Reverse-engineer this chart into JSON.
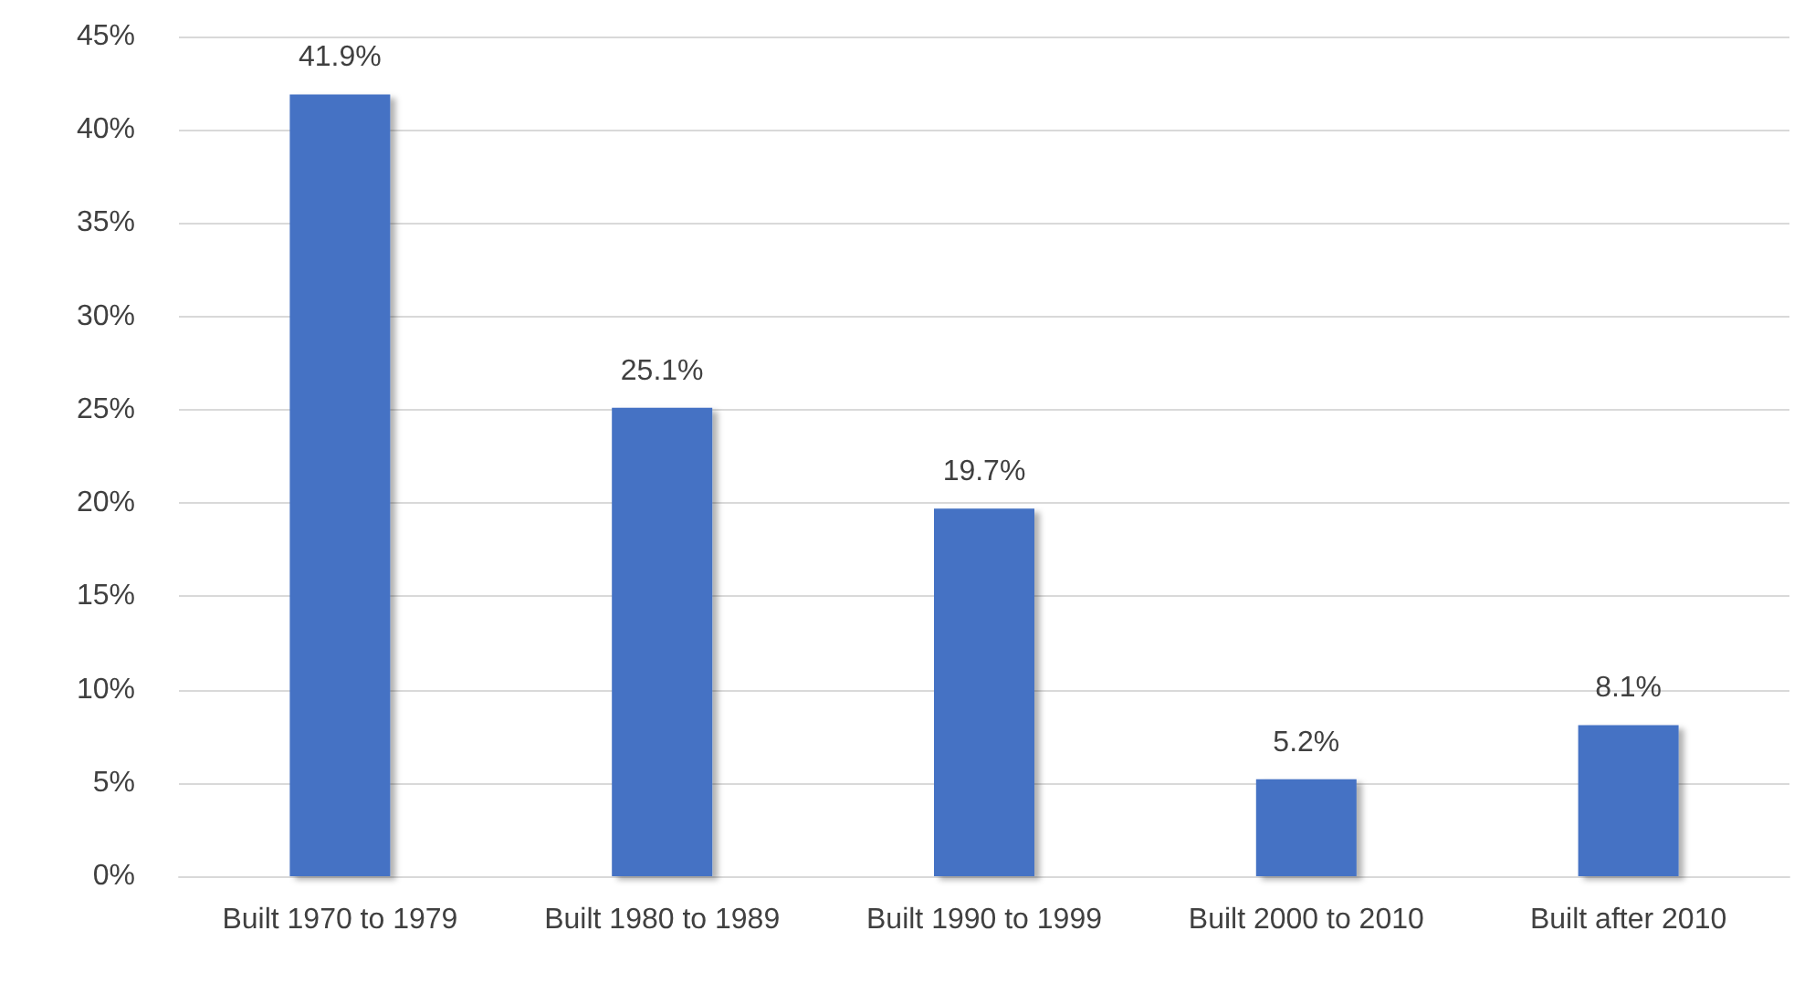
{
  "chart_data": {
    "type": "bar",
    "categories": [
      "Built 1970 to 1979",
      "Built 1980 to 1989",
      "Built 1990 to 1999",
      "Built 2000 to 2010",
      "Built after 2010"
    ],
    "values": [
      41.9,
      25.1,
      19.7,
      5.2,
      8.1
    ],
    "value_labels": [
      "41.9%",
      "25.1%",
      "19.7%",
      "5.2%",
      "8.1%"
    ],
    "color": "#4472c4",
    "ylim": [
      0,
      45
    ],
    "yticks": [
      {
        "value": 0,
        "label": "0%"
      },
      {
        "value": 5,
        "label": "5%"
      },
      {
        "value": 10,
        "label": "10%"
      },
      {
        "value": 15,
        "label": "15%"
      },
      {
        "value": 20,
        "label": "20%"
      },
      {
        "value": 25,
        "label": "25%"
      },
      {
        "value": 30,
        "label": "30%"
      },
      {
        "value": 35,
        "label": "35%"
      },
      {
        "value": 40,
        "label": "40%"
      },
      {
        "value": 45,
        "label": "45%"
      }
    ],
    "grid": "y"
  }
}
